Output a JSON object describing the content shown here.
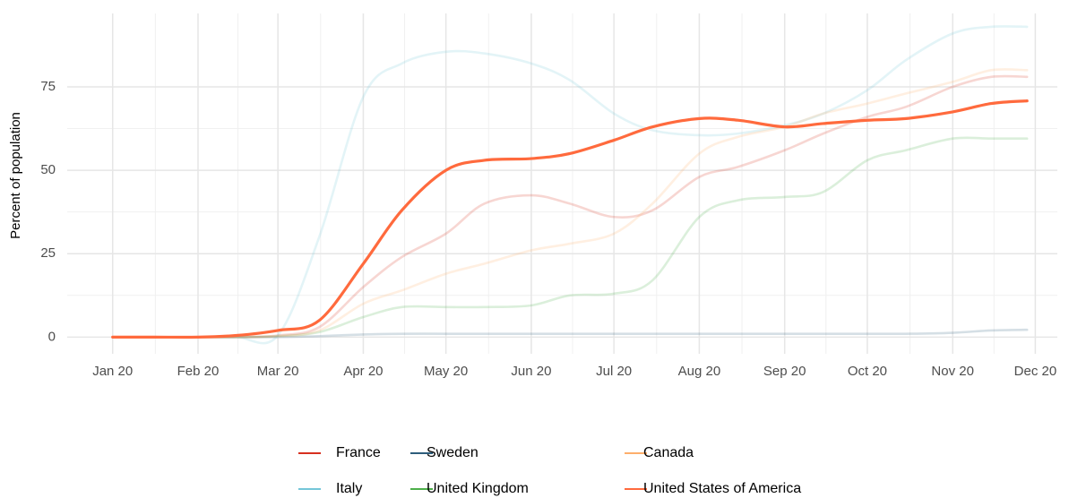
{
  "chart_data": {
    "type": "line",
    "ylabel": "Percent of population",
    "x": [
      0,
      15,
      31,
      45,
      60,
      75,
      91,
      105,
      121,
      135,
      152,
      166,
      182,
      196,
      213,
      227,
      244,
      258,
      274,
      288,
      305,
      319,
      332
    ],
    "xlim": [
      -16.5,
      343
    ],
    "xticks": [
      {
        "value": 0,
        "label": "Jan 20"
      },
      {
        "value": 31,
        "label": "Feb 20"
      },
      {
        "value": 60,
        "label": "Mar 20"
      },
      {
        "value": 91,
        "label": "Apr 20"
      },
      {
        "value": 121,
        "label": "May 20"
      },
      {
        "value": 152,
        "label": "Jun 20"
      },
      {
        "value": 182,
        "label": "Jul 20"
      },
      {
        "value": 213,
        "label": "Aug 20"
      },
      {
        "value": 244,
        "label": "Sep 20"
      },
      {
        "value": 274,
        "label": "Oct 20"
      },
      {
        "value": 305,
        "label": "Nov 20"
      },
      {
        "value": 335,
        "label": "Dec 20"
      }
    ],
    "ylim": [
      -5,
      97
    ],
    "yticks": [
      0,
      25,
      50,
      75
    ],
    "grid": true,
    "highlight": "United States of America",
    "series": [
      {
        "name": "France",
        "color": "#d7301f",
        "values": [
          0,
          0,
          0,
          0,
          0.5,
          3,
          15,
          24,
          31,
          40,
          42.5,
          40,
          36,
          38,
          48,
          51,
          56,
          61,
          66,
          69,
          75,
          78,
          78
        ]
      },
      {
        "name": "Italy",
        "color": "#74c6d8",
        "values": [
          0,
          0,
          0,
          0,
          0.5,
          30,
          72,
          82,
          85.5,
          85,
          82,
          77,
          67,
          62,
          60.5,
          61,
          63.5,
          67,
          74,
          83,
          91,
          93,
          93
        ]
      },
      {
        "name": "Sweden",
        "color": "#2d5d7b",
        "values": [
          0,
          0,
          0,
          0,
          0,
          0.3,
          0.8,
          1,
          1,
          1,
          1,
          1,
          1,
          1,
          1,
          1,
          1,
          1,
          1,
          1,
          1.3,
          2,
          2.2
        ]
      },
      {
        "name": "United Kingdom",
        "color": "#4daf4a",
        "values": [
          0,
          0,
          0,
          0,
          0.3,
          1.5,
          6,
          9,
          9,
          9,
          9.5,
          12.5,
          13,
          17,
          36,
          41,
          42,
          43.5,
          53,
          56,
          59.5,
          59.5,
          59.5
        ]
      },
      {
        "name": "Canada",
        "color": "#fdae6b",
        "values": [
          0,
          0,
          0,
          0,
          0.3,
          2,
          10,
          14,
          19,
          22,
          26,
          28,
          31,
          40,
          55,
          60,
          63,
          67,
          70,
          73,
          76.5,
          80,
          80
        ]
      },
      {
        "name": "United States of America",
        "color": "#ff6a3d",
        "values": [
          0,
          0,
          0,
          0.5,
          2,
          5,
          22,
          38,
          50,
          53,
          53.5,
          55,
          59,
          63,
          65.5,
          65,
          63,
          64,
          65,
          65.5,
          67.5,
          70,
          70.8
        ]
      }
    ]
  }
}
